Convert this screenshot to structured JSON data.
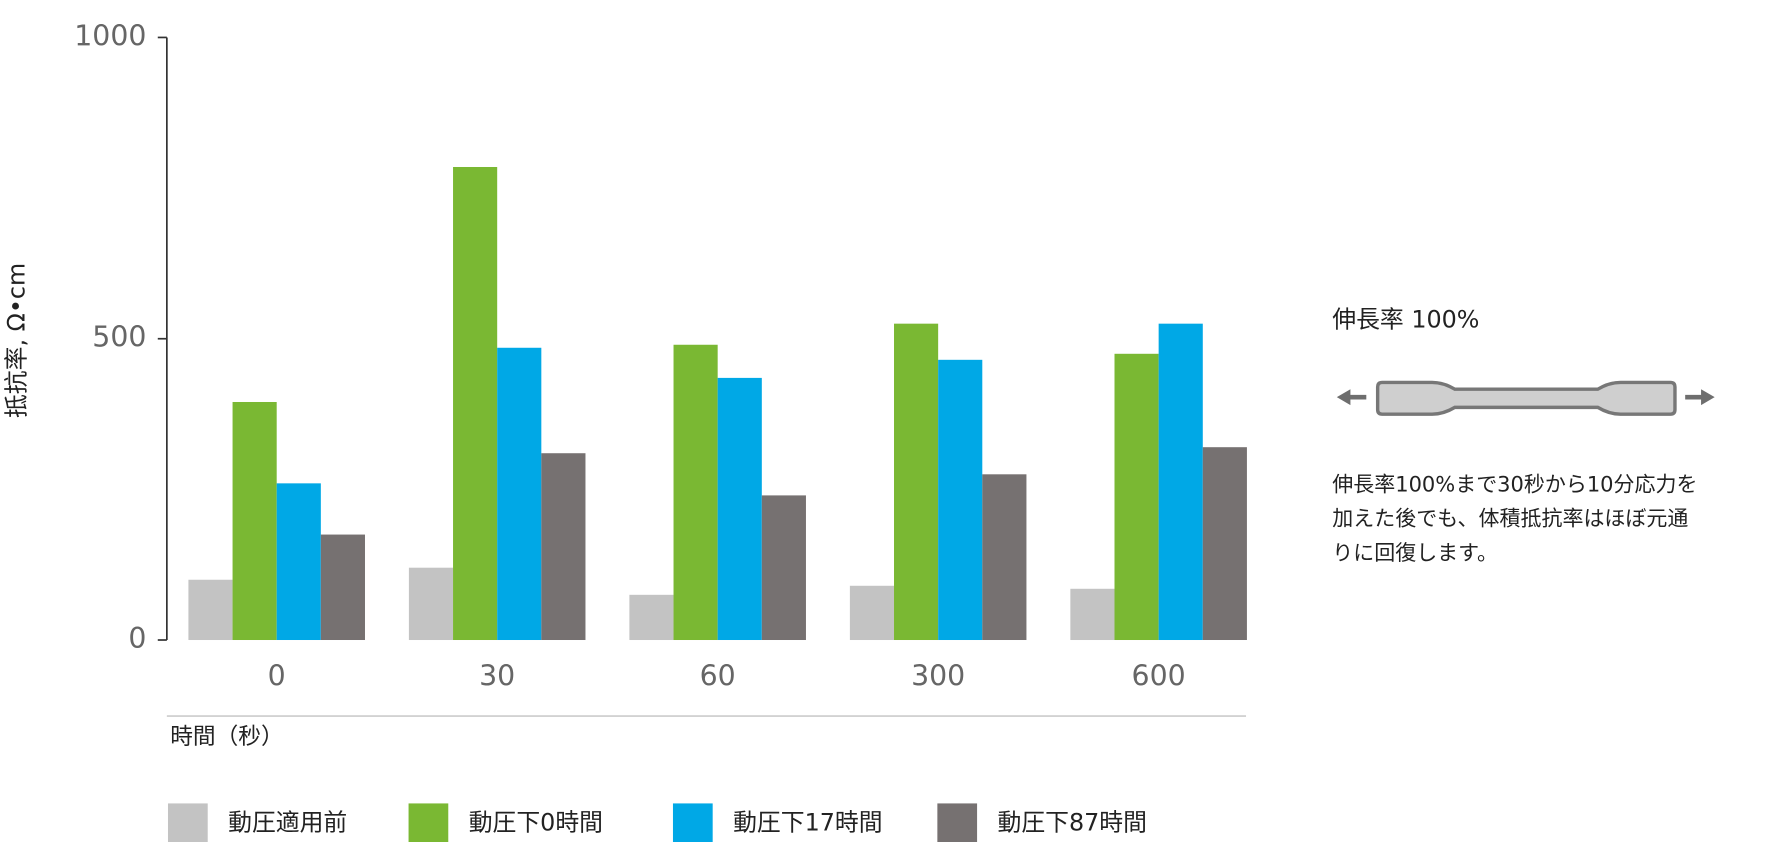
{
  "chart_data": {
    "type": "bar",
    "y_label": "抵抗率, Ω•cm",
    "x_label": "時間（秒）",
    "categories": [
      "0",
      "30",
      "60",
      "300",
      "600"
    ],
    "series": [
      {
        "name": "動圧適用前",
        "color": "#c3c3c3",
        "values": [
          100,
          120,
          75,
          90,
          85
        ]
      },
      {
        "name": "動圧下0時間",
        "color": "#7ab833",
        "values": [
          395,
          785,
          490,
          525,
          475
        ]
      },
      {
        "name": "動圧下17時間",
        "color": "#00a8e6",
        "values": [
          260,
          485,
          435,
          465,
          525
        ]
      },
      {
        "name": "動圧下87時間",
        "color": "#767171",
        "values": [
          175,
          310,
          240,
          275,
          320
        ]
      }
    ],
    "ylim": [
      0,
      1000
    ],
    "yticks": [
      0,
      500,
      1000
    ],
    "grid": false
  },
  "annotation": {
    "title": "伸長率 100%",
    "lines": [
      "伸長率100%まで30秒から10分応力を",
      "加えた後でも、体積抵抗率はほぼ元通",
      "りに回復します。"
    ]
  }
}
